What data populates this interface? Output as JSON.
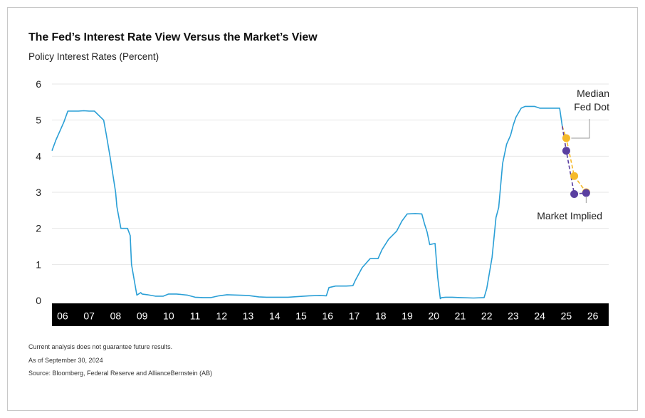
{
  "chart_title": "The Fed’s Interest Rate View Versus the Market’s View",
  "chart_subtitle": "Policy Interest Rates (Percent)",
  "footnotes": [
    "Current analysis does not guarantee future results.",
    "As of September 30, 2024",
    "Source: Bloomberg, Federal Reserve and AllianceBernstein (AB)"
  ],
  "colors": {
    "history_line": "#2a9fd6",
    "fed_dot": "#f5b92a",
    "market_implied": "#5a3fa0",
    "grid": "#e6e6e6",
    "axis_band": "#000000"
  },
  "chart_data": {
    "type": "line",
    "title": "The Fed’s Interest Rate View Versus the Market’s View",
    "ylabel": "Policy Interest Rates (Percent)",
    "xlabel": "",
    "ylim": [
      0,
      6
    ],
    "yticks": [
      "0",
      "1",
      "2",
      "3",
      "4",
      "5",
      "6"
    ],
    "xlim": [
      2005.6,
      2026.6
    ],
    "xtick_labels": [
      "06",
      "07",
      "08",
      "09",
      "10",
      "11",
      "12",
      "13",
      "14",
      "15",
      "16",
      "17",
      "18",
      "19",
      "20",
      "21",
      "22",
      "23",
      "24",
      "25",
      "26"
    ],
    "grid": "horizontal",
    "legend": "none",
    "series": [
      {
        "name": "",
        "style": "solid",
        "x": [
          2005.6,
          2005.75,
          2005.9,
          2006.05,
          2006.2,
          2006.4,
          2006.6,
          2006.8,
          2007.0,
          2007.2,
          2007.55,
          2007.65,
          2007.8,
          2008.0,
          2008.05,
          2008.2,
          2008.3,
          2008.45,
          2008.55,
          2008.6,
          2008.8,
          2008.95,
          2009.0,
          2009.2,
          2009.5,
          2009.8,
          2010.0,
          2010.3,
          2010.7,
          2011.0,
          2011.3,
          2011.6,
          2011.9,
          2012.2,
          2012.6,
          2013.0,
          2013.4,
          2013.7,
          2014.0,
          2014.5,
          2014.9,
          2015.3,
          2015.7,
          2015.95,
          2016.05,
          2016.3,
          2016.7,
          2016.95,
          2017.05,
          2017.3,
          2017.6,
          2017.9,
          2018.05,
          2018.3,
          2018.6,
          2018.8,
          2019.0,
          2019.3,
          2019.55,
          2019.65,
          2019.75,
          2019.85,
          2020.05,
          2020.15,
          2020.25,
          2020.3,
          2020.45,
          2020.7,
          2021.0,
          2021.5,
          2021.9,
          2022.0,
          2022.2,
          2022.35,
          2022.45,
          2022.6,
          2022.75,
          2022.9,
          2023.0,
          2023.1,
          2023.3,
          2023.45,
          2023.6,
          2023.8,
          2024.0,
          2024.5,
          2024.75,
          2024.85
        ],
        "values": [
          4.15,
          4.45,
          4.7,
          4.95,
          5.25,
          5.25,
          5.25,
          5.26,
          5.25,
          5.25,
          5.0,
          4.6,
          3.95,
          3.0,
          2.6,
          2.0,
          2.0,
          2.0,
          1.8,
          1.0,
          0.15,
          0.22,
          0.18,
          0.16,
          0.12,
          0.12,
          0.18,
          0.18,
          0.15,
          0.09,
          0.08,
          0.08,
          0.13,
          0.16,
          0.15,
          0.14,
          0.1,
          0.09,
          0.09,
          0.09,
          0.11,
          0.13,
          0.14,
          0.13,
          0.36,
          0.4,
          0.4,
          0.41,
          0.57,
          0.91,
          1.16,
          1.16,
          1.41,
          1.7,
          1.92,
          2.2,
          2.4,
          2.41,
          2.4,
          2.13,
          1.9,
          1.55,
          1.58,
          0.65,
          0.05,
          0.08,
          0.09,
          0.09,
          0.08,
          0.07,
          0.08,
          0.33,
          1.2,
          2.3,
          2.58,
          3.8,
          4.33,
          4.58,
          4.86,
          5.08,
          5.33,
          5.38,
          5.38,
          5.38,
          5.33,
          5.33,
          5.33,
          4.83
        ]
      },
      {
        "name": "Median Fed Dot",
        "style": "dashed-with-markers",
        "x": [
          2024.85,
          2025.0,
          2025.3,
          2025.75
        ],
        "values": [
          4.83,
          4.5,
          3.45,
          3.0
        ]
      },
      {
        "name": "Market Implied",
        "style": "dashed-with-markers",
        "x": [
          2024.85,
          2025.0,
          2025.3,
          2025.75
        ],
        "values": [
          4.83,
          4.15,
          2.95,
          2.98
        ]
      }
    ],
    "annotations": [
      {
        "lines": [
          "Median",
          "Fed Dot"
        ],
        "points_to": "Median Fed Dot"
      },
      {
        "lines": [
          "Market Implied"
        ],
        "points_to": "Market Implied"
      }
    ]
  }
}
